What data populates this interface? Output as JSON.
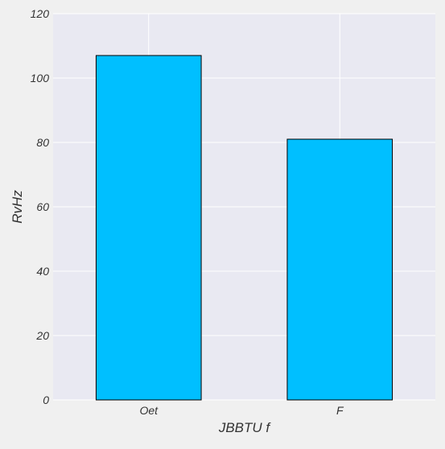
{
  "chart_data": {
    "type": "bar",
    "title": "",
    "xlabel": "JBBTU f",
    "ylabel": "RvHz",
    "categories": [
      "Oet",
      "F"
    ],
    "values": [
      107,
      81
    ],
    "ylim": [
      0,
      120
    ],
    "yticks": [
      0,
      20,
      40,
      60,
      80,
      100,
      120
    ],
    "grid": true,
    "legend": "none",
    "colors": {
      "bar": "#00bfff",
      "bar_edge": "#000000",
      "plot_background": "#e9e9f2",
      "page_background": "#f0f0f0",
      "grid": "#ffffff"
    }
  }
}
